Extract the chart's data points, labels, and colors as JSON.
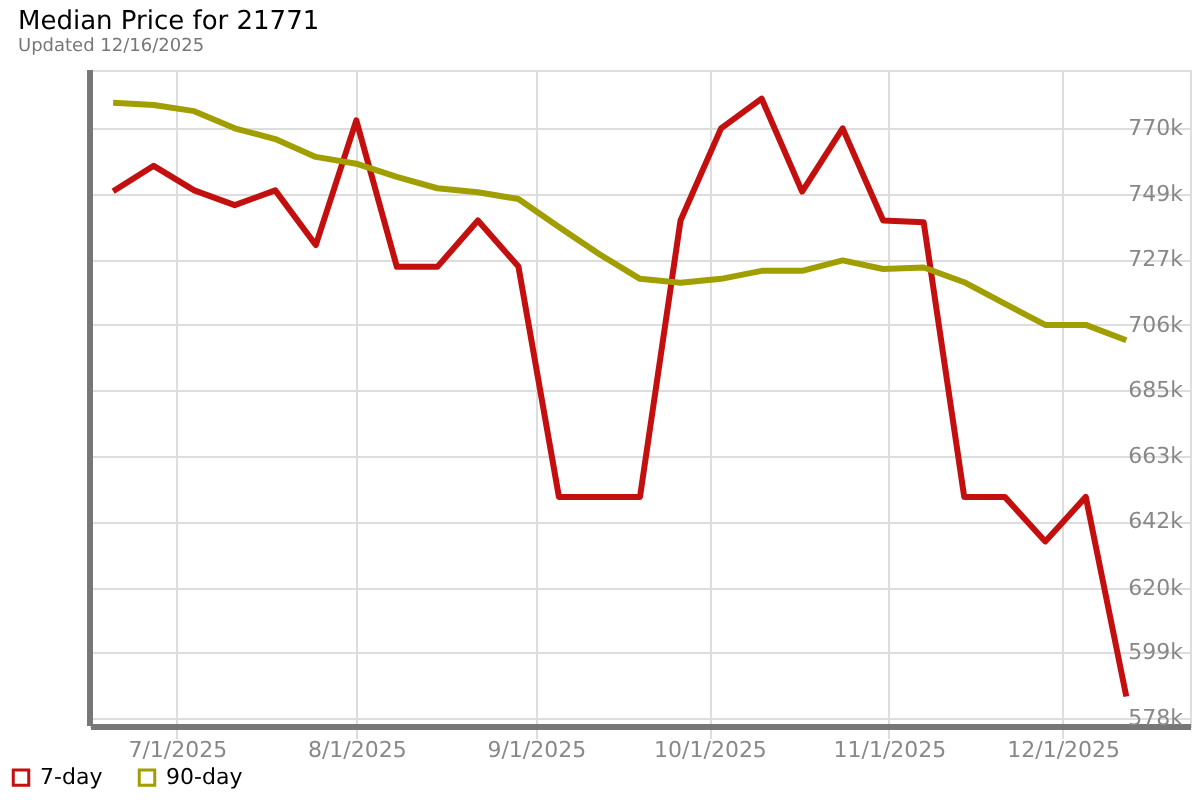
{
  "chart_data": {
    "type": "line",
    "title": "Median Price for 21771",
    "subtitle": "Updated 12/16/2025",
    "x": [
      "2025-06-20",
      "2025-06-27",
      "2025-07-04",
      "2025-07-11",
      "2025-07-18",
      "2025-07-25",
      "2025-08-01",
      "2025-08-08",
      "2025-08-15",
      "2025-08-22",
      "2025-08-29",
      "2025-09-05",
      "2025-09-12",
      "2025-09-19",
      "2025-09-26",
      "2025-10-03",
      "2025-10-10",
      "2025-10-17",
      "2025-10-24",
      "2025-10-31",
      "2025-11-07",
      "2025-11-14",
      "2025-11-21",
      "2025-11-28",
      "2025-12-05",
      "2025-12-12"
    ],
    "series": [
      {
        "name": "7-day",
        "color": "#c40f0f",
        "values": [
          749500,
          757800,
          749800,
          745000,
          749800,
          732000,
          772600,
          724900,
          724900,
          740000,
          725000,
          650000,
          650000,
          650000,
          740000,
          770000,
          779700,
          749400,
          770000,
          740000,
          739400,
          650000,
          650000,
          635500,
          650000,
          585000
        ]
      },
      {
        "name": "90-day",
        "color": "#a09e00",
        "values": [
          778300,
          777600,
          775600,
          770000,
          766500,
          760700,
          758500,
          754200,
          750500,
          749200,
          747000,
          737900,
          729000,
          721000,
          719700,
          721000,
          723600,
          723600,
          727000,
          724200,
          724700,
          719900,
          712900,
          706000,
          706000,
          701000
        ]
      }
    ],
    "xlim": [
      "2025-06-16",
      "2025-12-23"
    ],
    "xticks": [
      {
        "value": "2025-07-01",
        "label": "7/1/2025"
      },
      {
        "value": "2025-08-01",
        "label": "8/1/2025"
      },
      {
        "value": "2025-09-01",
        "label": "9/1/2025"
      },
      {
        "value": "2025-10-01",
        "label": "10/1/2025"
      },
      {
        "value": "2025-11-01",
        "label": "11/1/2025"
      },
      {
        "value": "2025-12-01",
        "label": "12/1/2025"
      }
    ],
    "ylim": [
      575400,
      789000
    ],
    "yticks": [
      {
        "value": 578000,
        "label": "578k"
      },
      {
        "value": 599333,
        "label": "599k"
      },
      {
        "value": 620400,
        "label": "620k"
      },
      {
        "value": 642000,
        "label": "642k"
      },
      {
        "value": 663333,
        "label": "663k"
      },
      {
        "value": 684667,
        "label": "685k"
      },
      {
        "value": 706000,
        "label": "706k"
      },
      {
        "value": 727333,
        "label": "727k"
      },
      {
        "value": 748667,
        "label": "749k"
      },
      {
        "value": 770000,
        "label": "770k"
      }
    ],
    "grid": true,
    "legend": "bottom left",
    "marker": "none",
    "line_style": "solid"
  }
}
